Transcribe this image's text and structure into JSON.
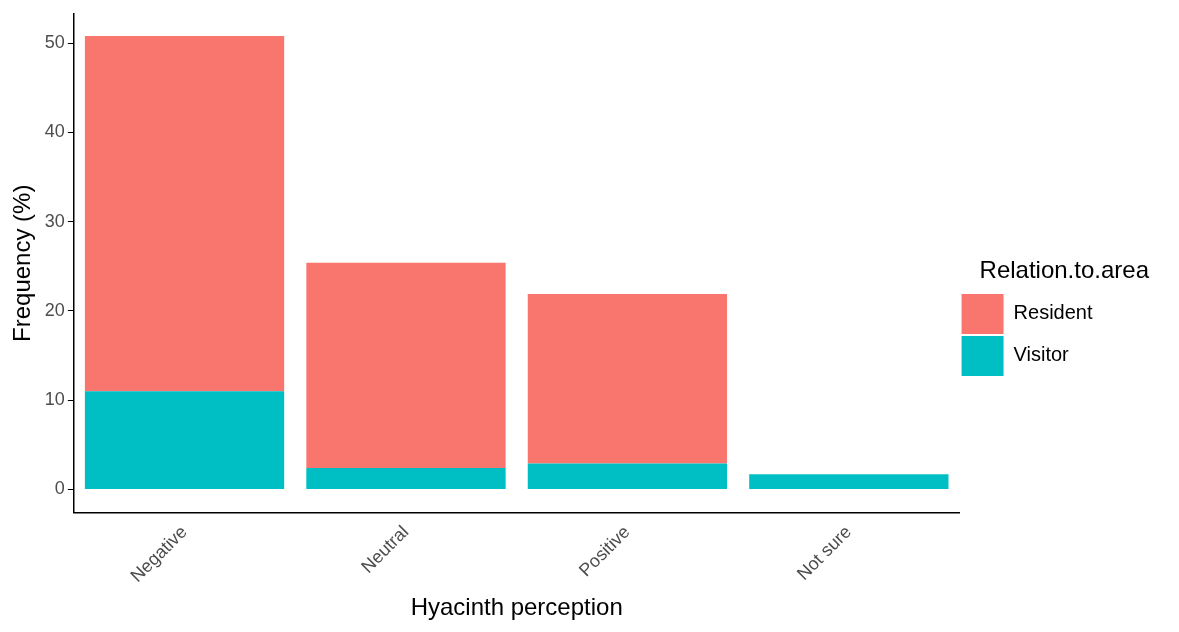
{
  "chart_data": {
    "type": "bar",
    "stacked": true,
    "xlabel": "Hyacinth perception",
    "ylabel": "Frequency (%)",
    "legend_title": "Relation.to.area",
    "legend": "right",
    "grid": false,
    "categories": [
      "Negative",
      "Neutral",
      "Positive",
      "Not sure"
    ],
    "series": [
      {
        "name": "Visitor",
        "color": "#00bfc4",
        "values": [
          11.0,
          2.4,
          2.9,
          1.7
        ]
      },
      {
        "name": "Resident",
        "color": "#f8766d",
        "values": [
          39.8,
          23.0,
          19.0,
          0
        ]
      }
    ],
    "ylim": [
      -2.6,
      53.3
    ],
    "yticks": [
      0,
      10,
      20,
      30,
      40,
      50
    ]
  }
}
